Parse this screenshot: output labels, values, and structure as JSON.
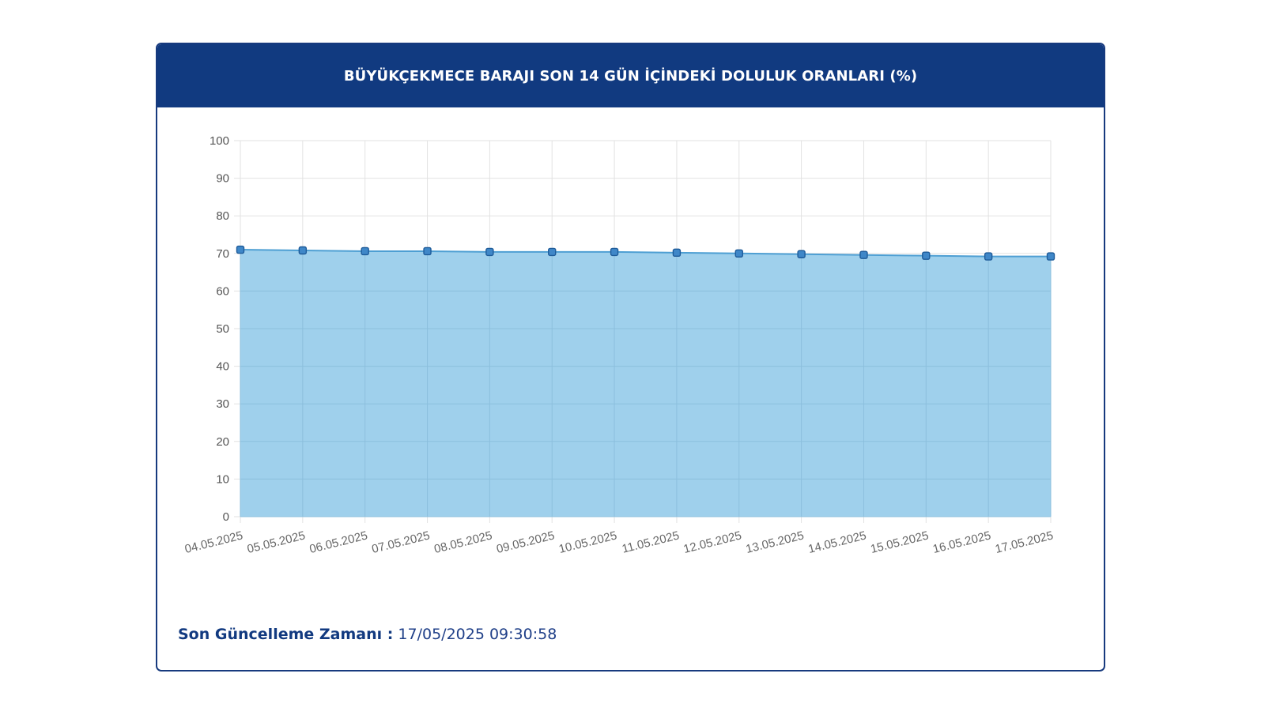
{
  "panel": {
    "title": "BÜYÜKÇEKMECE BARAJI SON 14 GÜN İÇİNDEKİ DOLULUK ORANLARI (%)",
    "last_update_label": "Son Güncelleme Zamanı :",
    "last_update_value": "17/05/2025 09:30:58"
  },
  "colors": {
    "header_bg": "#113a80",
    "line": "#4e9fd3",
    "area_fill": "#9fd0ec",
    "point_fill": "#3f87c8",
    "point_stroke": "#1e5b99"
  },
  "chart_data": {
    "type": "area",
    "title": "BÜYÜKÇEKMECE BARAJI SON 14 GÜN İÇİNDEKİ DOLULUK ORANLARI (%)",
    "x": [
      "04.05.2025",
      "05.05.2025",
      "06.05.2025",
      "07.05.2025",
      "08.05.2025",
      "09.05.2025",
      "10.05.2025",
      "11.05.2025",
      "12.05.2025",
      "13.05.2025",
      "14.05.2025",
      "15.05.2025",
      "16.05.2025",
      "17.05.2025"
    ],
    "series": [
      {
        "values": [
          71.0,
          70.8,
          70.6,
          70.6,
          70.4,
          70.4,
          70.4,
          70.2,
          70.0,
          69.8,
          69.6,
          69.4,
          69.2,
          69.2
        ]
      }
    ],
    "ylim": [
      0,
      100
    ],
    "yticks": [
      0,
      10,
      20,
      30,
      40,
      50,
      60,
      70,
      80,
      90,
      100
    ],
    "grid": true,
    "legend": "none"
  }
}
